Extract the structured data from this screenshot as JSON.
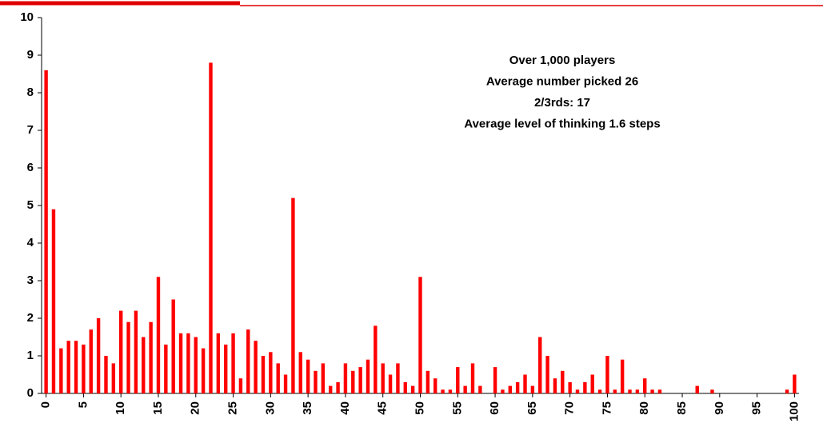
{
  "chart_data": {
    "type": "bar",
    "annotations": [
      "Over 1,000 players",
      "Average number picked 26",
      "2/3rds: 17",
      "Average level of thinking 1.6 steps"
    ],
    "x": [
      0,
      1,
      2,
      3,
      4,
      5,
      6,
      7,
      8,
      9,
      10,
      11,
      12,
      13,
      14,
      15,
      16,
      17,
      18,
      19,
      20,
      21,
      22,
      23,
      24,
      25,
      26,
      27,
      28,
      29,
      30,
      31,
      32,
      33,
      34,
      35,
      36,
      37,
      38,
      39,
      40,
      41,
      42,
      43,
      44,
      45,
      46,
      47,
      48,
      49,
      50,
      51,
      52,
      53,
      54,
      55,
      56,
      57,
      58,
      59,
      60,
      61,
      62,
      63,
      64,
      65,
      66,
      67,
      68,
      69,
      70,
      71,
      72,
      73,
      74,
      75,
      76,
      77,
      78,
      79,
      80,
      81,
      82,
      83,
      84,
      85,
      86,
      87,
      88,
      89,
      90,
      91,
      92,
      93,
      94,
      95,
      96,
      97,
      98,
      99,
      100
    ],
    "values": [
      8.6,
      4.9,
      1.2,
      1.4,
      1.4,
      1.3,
      1.7,
      2.0,
      1.0,
      0.8,
      2.2,
      1.9,
      2.2,
      1.5,
      1.9,
      3.1,
      1.3,
      2.5,
      1.6,
      1.6,
      1.5,
      1.2,
      8.8,
      1.6,
      1.3,
      1.6,
      0.4,
      1.7,
      1.4,
      1.0,
      1.1,
      0.8,
      0.5,
      5.2,
      1.1,
      0.9,
      0.6,
      0.8,
      0.2,
      0.3,
      0.8,
      0.6,
      0.7,
      0.9,
      1.8,
      0.8,
      0.5,
      0.8,
      0.3,
      0.2,
      3.1,
      0.6,
      0.4,
      0.1,
      0.1,
      0.7,
      0.2,
      0.8,
      0.2,
      0,
      0.7,
      0.1,
      0.2,
      0.3,
      0.5,
      0.2,
      1.5,
      1.0,
      0.4,
      0.6,
      0.3,
      0.1,
      0.3,
      0.5,
      0.1,
      1.0,
      0.1,
      0.9,
      0.1,
      0.1,
      0.4,
      0.1,
      0.1,
      0,
      0,
      0,
      0,
      0.2,
      0,
      0.1,
      0,
      0,
      0,
      0,
      0,
      0,
      0,
      0,
      0,
      0.1,
      0.5
    ],
    "color": "#ff0000",
    "xlim": [
      -0.6,
      100.6
    ],
    "xticks": [
      0,
      5,
      10,
      15,
      20,
      25,
      30,
      35,
      40,
      45,
      50,
      55,
      60,
      65,
      70,
      75,
      80,
      85,
      90,
      95,
      100
    ],
    "ylim": [
      0,
      10
    ],
    "yticks": [
      0,
      1,
      2,
      3,
      4,
      5,
      6,
      7,
      8,
      9,
      10
    ]
  }
}
